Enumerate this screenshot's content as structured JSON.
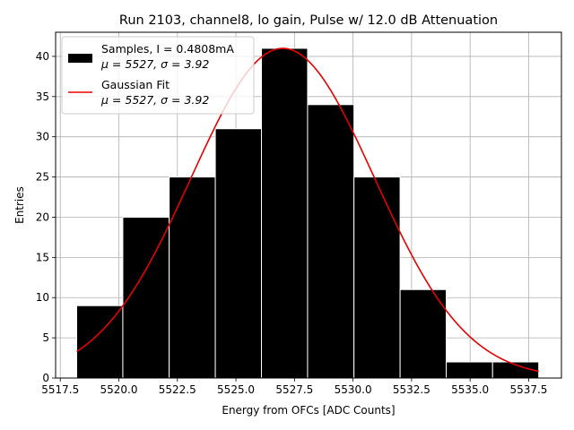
{
  "chart_data": {
    "type": "bar",
    "title": "Run 2103, channel8, lo gain, Pulse w/ 12.0 dB Attenuation",
    "xlabel": "Energy from OFCs [ADC Counts]",
    "ylabel": "Entries",
    "xlim": [
      5517.3,
      5538.9
    ],
    "ylim": [
      0,
      43
    ],
    "grid": true,
    "legend_position": "top-left",
    "x_ticks": [
      "5517.5",
      "5520.0",
      "5522.5",
      "5525.0",
      "5527.5",
      "5530.0",
      "5532.5",
      "5535.0",
      "5537.5"
    ],
    "y_ticks": [
      "0",
      "5",
      "10",
      "15",
      "20",
      "25",
      "30",
      "35",
      "40"
    ],
    "bin_edges": [
      5518.2,
      5520.17,
      5522.15,
      5524.12,
      5526.09,
      5528.06,
      5530.04,
      5532.01,
      5533.98,
      5535.96,
      5537.93
    ],
    "values": [
      9,
      20,
      25,
      31,
      41,
      34,
      25,
      11,
      2,
      2
    ],
    "fit": {
      "mu": 5527,
      "sigma": 3.92,
      "amplitude": 41,
      "x_range": [
        5518.2,
        5537.93
      ]
    },
    "legend": [
      {
        "line1": "Samples, I = 0.4808mA",
        "line2": "μ = 5527, σ = 3.92",
        "color": "#000000"
      },
      {
        "line1": "Gaussian Fit",
        "line2": "μ = 5527, σ = 3.92",
        "color": "#e80000"
      }
    ],
    "bar_color": "#000000",
    "fit_color": "#e80000"
  }
}
